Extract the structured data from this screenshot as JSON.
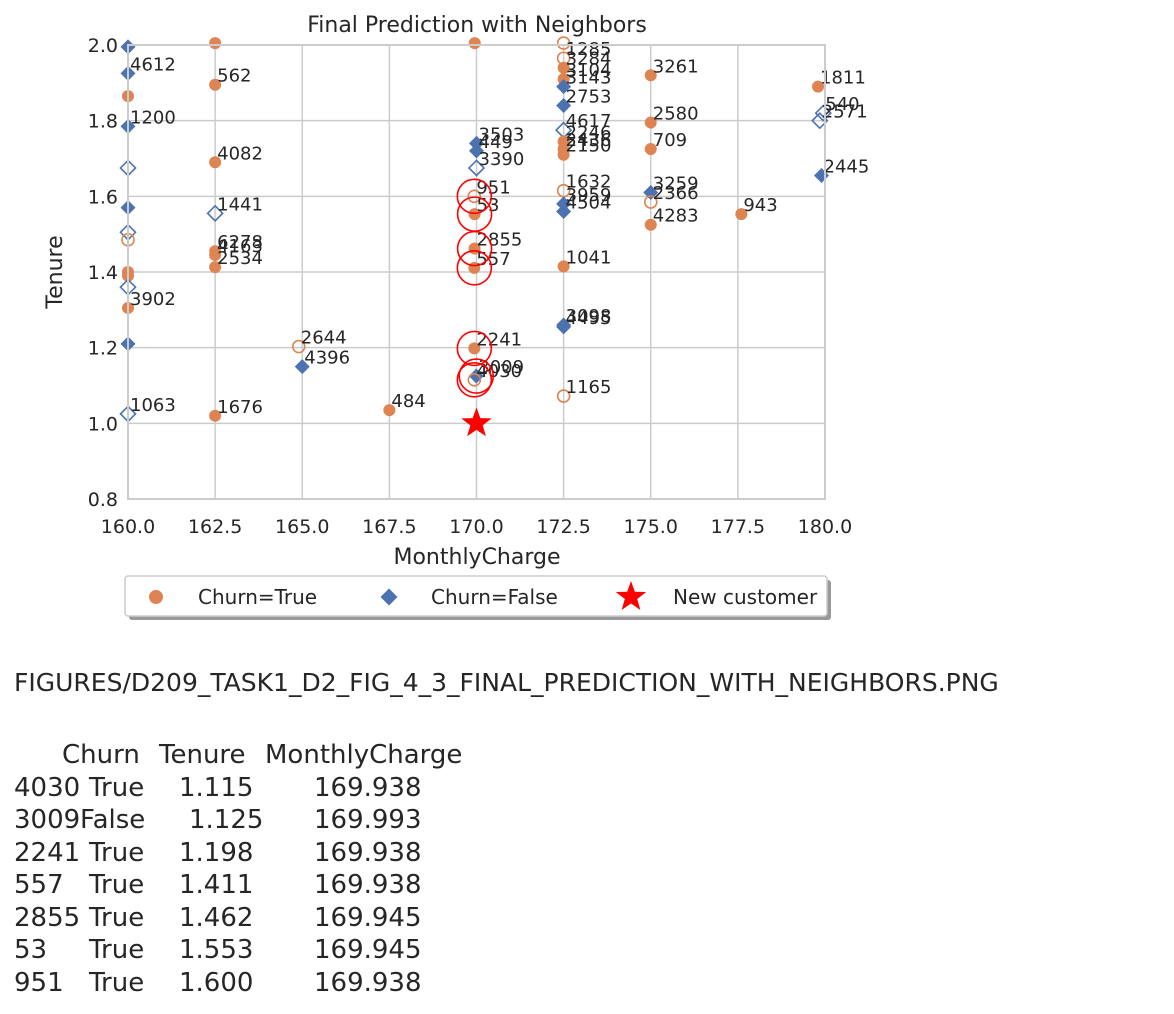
{
  "chart_data": {
    "type": "scatter",
    "title": "Final Prediction with Neighbors",
    "xlabel": "MonthlyCharge",
    "ylabel": "Tenure",
    "xlim": [
      160.0,
      180.0
    ],
    "ylim": [
      0.8,
      2.0
    ],
    "xticks": [
      "160.0",
      "162.5",
      "165.0",
      "167.5",
      "170.0",
      "172.5",
      "175.0",
      "177.5",
      "180.0"
    ],
    "yticks": [
      "0.8",
      "1.0",
      "1.2",
      "1.4",
      "1.6",
      "1.8",
      "2.0"
    ],
    "grid": true,
    "legend_position": "bottom-center",
    "legend": [
      {
        "label": "Churn=True",
        "marker": "circle",
        "color": "#dd8452"
      },
      {
        "label": "Churn=False",
        "marker": "diamond",
        "color": "#4c72b0"
      },
      {
        "label": "New customer",
        "marker": "star",
        "color": "#ff0000"
      }
    ],
    "colors": {
      "true": "#dd8452",
      "false": "#4c72b0",
      "new": "#ff0000",
      "grid": "#cccccc"
    },
    "points": [
      {
        "x": 160.0,
        "y": 1.995,
        "churn": false,
        "filled": true,
        "label": ""
      },
      {
        "x": 162.5,
        "y": 2.005,
        "churn": true,
        "filled": true,
        "label": ""
      },
      {
        "x": 169.95,
        "y": 2.005,
        "churn": true,
        "filled": true,
        "label": ""
      },
      {
        "x": 172.5,
        "y": 2.005,
        "churn": true,
        "filled": false,
        "label": ""
      },
      {
        "x": 172.5,
        "y": 1.965,
        "churn": true,
        "filled": false,
        "label": "1285"
      },
      {
        "x": 172.5,
        "y": 1.94,
        "churn": true,
        "filled": true,
        "label": "3284"
      },
      {
        "x": 172.5,
        "y": 1.91,
        "churn": true,
        "filled": true,
        "label": "3104"
      },
      {
        "x": 172.5,
        "y": 1.89,
        "churn": false,
        "filled": true,
        "label": "3143"
      },
      {
        "x": 160.0,
        "y": 1.925,
        "churn": false,
        "filled": true,
        "label": "4612"
      },
      {
        "x": 160.0,
        "y": 1.865,
        "churn": true,
        "filled": true,
        "label": ""
      },
      {
        "x": 162.5,
        "y": 1.895,
        "churn": true,
        "filled": true,
        "label": "562"
      },
      {
        "x": 175.0,
        "y": 1.92,
        "churn": true,
        "filled": true,
        "label": "3261"
      },
      {
        "x": 179.8,
        "y": 1.89,
        "churn": true,
        "filled": true,
        "label": "1811"
      },
      {
        "x": 179.95,
        "y": 1.82,
        "churn": false,
        "filled": false,
        "label": "540"
      },
      {
        "x": 179.85,
        "y": 1.8,
        "churn": false,
        "filled": false,
        "label": "2571"
      },
      {
        "x": 172.5,
        "y": 1.84,
        "churn": false,
        "filled": true,
        "label": "2753"
      },
      {
        "x": 160.0,
        "y": 1.785,
        "churn": false,
        "filled": true,
        "label": "1200"
      },
      {
        "x": 175.0,
        "y": 1.795,
        "churn": true,
        "filled": true,
        "label": "2580"
      },
      {
        "x": 172.5,
        "y": 1.775,
        "churn": false,
        "filled": false,
        "label": "4617"
      },
      {
        "x": 172.5,
        "y": 1.745,
        "churn": true,
        "filled": true,
        "label": "2246"
      },
      {
        "x": 172.5,
        "y": 1.725,
        "churn": true,
        "filled": true,
        "label": "2436"
      },
      {
        "x": 172.5,
        "y": 1.71,
        "churn": true,
        "filled": true,
        "label": "2150"
      },
      {
        "x": 175.0,
        "y": 1.725,
        "churn": true,
        "filled": true,
        "label": "709"
      },
      {
        "x": 170.0,
        "y": 1.74,
        "churn": false,
        "filled": true,
        "label": "3503"
      },
      {
        "x": 170.0,
        "y": 1.72,
        "churn": false,
        "filled": true,
        "label": "449"
      },
      {
        "x": 170.0,
        "y": 1.675,
        "churn": false,
        "filled": false,
        "label": "3390"
      },
      {
        "x": 160.0,
        "y": 1.675,
        "churn": false,
        "filled": false,
        "label": ""
      },
      {
        "x": 162.5,
        "y": 1.69,
        "churn": true,
        "filled": true,
        "label": "4082"
      },
      {
        "x": 179.9,
        "y": 1.655,
        "churn": false,
        "filled": true,
        "label": "2445"
      },
      {
        "x": 172.5,
        "y": 1.615,
        "churn": true,
        "filled": false,
        "label": "1632"
      },
      {
        "x": 175.0,
        "y": 1.61,
        "churn": false,
        "filled": true,
        "label": "3259"
      },
      {
        "x": 175.0,
        "y": 1.585,
        "churn": true,
        "filled": false,
        "label": "2366"
      },
      {
        "x": 172.5,
        "y": 1.58,
        "churn": false,
        "filled": true,
        "label": "3959"
      },
      {
        "x": 172.5,
        "y": 1.56,
        "churn": false,
        "filled": true,
        "label": "4504"
      },
      {
        "x": 175.0,
        "y": 1.525,
        "churn": true,
        "filled": true,
        "label": "4283"
      },
      {
        "x": 177.6,
        "y": 1.553,
        "churn": true,
        "filled": true,
        "label": "943"
      },
      {
        "x": 169.938,
        "y": 1.6,
        "churn": true,
        "filled": false,
        "label": "951"
      },
      {
        "x": 169.945,
        "y": 1.553,
        "churn": true,
        "filled": true,
        "label": "53"
      },
      {
        "x": 160.0,
        "y": 1.57,
        "churn": false,
        "filled": true,
        "label": ""
      },
      {
        "x": 162.5,
        "y": 1.555,
        "churn": false,
        "filled": false,
        "label": "1441"
      },
      {
        "x": 160.0,
        "y": 1.505,
        "churn": false,
        "filled": false,
        "label": ""
      },
      {
        "x": 160.0,
        "y": 1.485,
        "churn": true,
        "filled": false,
        "label": ""
      },
      {
        "x": 162.5,
        "y": 1.455,
        "churn": true,
        "filled": true,
        "label": "6278"
      },
      {
        "x": 162.5,
        "y": 1.445,
        "churn": true,
        "filled": true,
        "label": "4163"
      },
      {
        "x": 162.5,
        "y": 1.413,
        "churn": true,
        "filled": true,
        "label": "2534"
      },
      {
        "x": 160.0,
        "y": 1.4,
        "churn": true,
        "filled": true,
        "label": ""
      },
      {
        "x": 160.0,
        "y": 1.39,
        "churn": true,
        "filled": true,
        "label": ""
      },
      {
        "x": 169.945,
        "y": 1.462,
        "churn": true,
        "filled": true,
        "label": "2855"
      },
      {
        "x": 169.938,
        "y": 1.411,
        "churn": true,
        "filled": true,
        "label": "557"
      },
      {
        "x": 172.5,
        "y": 1.415,
        "churn": true,
        "filled": true,
        "label": "1041"
      },
      {
        "x": 160.0,
        "y": 1.36,
        "churn": false,
        "filled": false,
        "label": ""
      },
      {
        "x": 160.0,
        "y": 1.305,
        "churn": true,
        "filled": true,
        "label": "3902"
      },
      {
        "x": 172.5,
        "y": 1.26,
        "churn": false,
        "filled": true,
        "label": "3098"
      },
      {
        "x": 172.5,
        "y": 1.255,
        "churn": false,
        "filled": true,
        "label": "4495"
      },
      {
        "x": 160.0,
        "y": 1.21,
        "churn": false,
        "filled": true,
        "label": ""
      },
      {
        "x": 164.9,
        "y": 1.203,
        "churn": true,
        "filled": false,
        "label": "2644"
      },
      {
        "x": 165.0,
        "y": 1.15,
        "churn": false,
        "filled": true,
        "label": "4396"
      },
      {
        "x": 169.938,
        "y": 1.198,
        "churn": true,
        "filled": true,
        "label": "2241"
      },
      {
        "x": 169.993,
        "y": 1.125,
        "churn": false,
        "filled": true,
        "label": "3009"
      },
      {
        "x": 169.938,
        "y": 1.115,
        "churn": true,
        "filled": false,
        "label": "4030"
      },
      {
        "x": 172.5,
        "y": 1.072,
        "churn": true,
        "filled": false,
        "label": "1165"
      },
      {
        "x": 167.5,
        "y": 1.035,
        "churn": true,
        "filled": true,
        "label": "484"
      },
      {
        "x": 160.0,
        "y": 1.025,
        "churn": false,
        "filled": false,
        "label": "1063"
      },
      {
        "x": 162.5,
        "y": 1.02,
        "churn": true,
        "filled": true,
        "label": "1676"
      }
    ],
    "neighbors": [
      {
        "x": 169.938,
        "y": 1.115
      },
      {
        "x": 169.993,
        "y": 1.125
      },
      {
        "x": 169.938,
        "y": 1.198
      },
      {
        "x": 169.938,
        "y": 1.411
      },
      {
        "x": 169.945,
        "y": 1.462
      },
      {
        "x": 169.945,
        "y": 1.553
      },
      {
        "x": 169.938,
        "y": 1.6
      }
    ],
    "new_customer": {
      "x": 170.0,
      "y": 1.0
    }
  },
  "caption": "FIGURES/D209_TASK1_D2_FIG_4_3_FINAL_PREDICTION_WITH_NEIGHBORS.PNG",
  "table": {
    "headers": [
      "Churn",
      "Tenure",
      "MonthlyCharge"
    ],
    "rows": [
      {
        "index": "4030",
        "churn": "True",
        "tenure": "1.115",
        "monthly": "169.938"
      },
      {
        "index": "3009",
        "churn": "False",
        "tenure": "1.125",
        "monthly": "169.993"
      },
      {
        "index": "2241",
        "churn": "True",
        "tenure": "1.198",
        "monthly": "169.938"
      },
      {
        "index": "557",
        "churn": "True",
        "tenure": "1.411",
        "monthly": "169.938"
      },
      {
        "index": "2855",
        "churn": "True",
        "tenure": "1.462",
        "monthly": "169.945"
      },
      {
        "index": "53",
        "churn": "True",
        "tenure": "1.553",
        "monthly": "169.945"
      },
      {
        "index": "951",
        "churn": "True",
        "tenure": "1.600",
        "monthly": "169.938"
      }
    ]
  }
}
